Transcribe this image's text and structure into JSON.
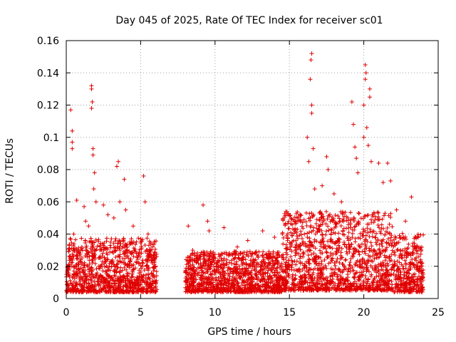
{
  "chart_data": {
    "type": "scatter",
    "title": "Day 045 of 2025, Rate Of TEC Index for receiver sc01",
    "xlabel": "GPS time / hours",
    "ylabel": "ROTI / TECUs",
    "xlim": [
      0,
      25
    ],
    "ylim": [
      0,
      0.16
    ],
    "xticks": [
      0,
      5,
      10,
      15,
      20,
      25
    ],
    "xtick_labels": [
      "0",
      "5",
      "10",
      "15",
      "20",
      "25"
    ],
    "yticks": [
      0,
      0.02,
      0.04,
      0.06,
      0.08,
      0.1,
      0.12,
      0.14,
      0.16
    ],
    "ytick_labels": [
      "0",
      "0.02",
      "0.04",
      "0.06",
      "0.08",
      "0.1",
      "0.12",
      "0.14",
      "0.16"
    ],
    "grid": true,
    "marker": "+",
    "marker_color": "#e00000",
    "data_gaps_hours": [
      [
        6.1,
        8.0
      ]
    ],
    "series": [
      {
        "name": "ROTI",
        "points": [
          [
            0.3,
            0.117
          ],
          [
            0.4,
            0.104
          ],
          [
            0.4,
            0.097
          ],
          [
            0.4,
            0.093
          ],
          [
            0.2,
            0.031
          ],
          [
            0.5,
            0.04
          ],
          [
            0.7,
            0.061
          ],
          [
            1.2,
            0.057
          ],
          [
            1.3,
            0.048
          ],
          [
            1.5,
            0.045
          ],
          [
            1.7,
            0.132
          ],
          [
            1.7,
            0.13
          ],
          [
            1.75,
            0.122
          ],
          [
            1.7,
            0.118
          ],
          [
            1.8,
            0.093
          ],
          [
            1.8,
            0.089
          ],
          [
            1.9,
            0.078
          ],
          [
            1.85,
            0.068
          ],
          [
            2.0,
            0.06
          ],
          [
            2.5,
            0.058
          ],
          [
            2.8,
            0.052
          ],
          [
            3.2,
            0.05
          ],
          [
            3.5,
            0.085
          ],
          [
            3.4,
            0.082
          ],
          [
            3.6,
            0.06
          ],
          [
            3.9,
            0.074
          ],
          [
            4.0,
            0.055
          ],
          [
            4.5,
            0.045
          ],
          [
            5.2,
            0.076
          ],
          [
            5.3,
            0.06
          ],
          [
            5.5,
            0.04
          ],
          [
            5.8,
            0.032
          ],
          [
            8.2,
            0.045
          ],
          [
            8.5,
            0.03
          ],
          [
            9.2,
            0.058
          ],
          [
            9.5,
            0.048
          ],
          [
            9.6,
            0.042
          ],
          [
            10.6,
            0.044
          ],
          [
            11.5,
            0.032
          ],
          [
            12.2,
            0.036
          ],
          [
            13.2,
            0.042
          ],
          [
            14.0,
            0.038
          ],
          [
            14.9,
            0.052
          ],
          [
            15.4,
            0.048
          ],
          [
            16.2,
            0.1
          ],
          [
            16.3,
            0.085
          ],
          [
            16.5,
            0.152
          ],
          [
            16.45,
            0.148
          ],
          [
            16.4,
            0.136
          ],
          [
            16.5,
            0.12
          ],
          [
            16.5,
            0.115
          ],
          [
            16.6,
            0.093
          ],
          [
            16.7,
            0.068
          ],
          [
            17.2,
            0.07
          ],
          [
            17.5,
            0.088
          ],
          [
            17.6,
            0.08
          ],
          [
            18.0,
            0.065
          ],
          [
            18.5,
            0.06
          ],
          [
            19.2,
            0.122
          ],
          [
            19.3,
            0.108
          ],
          [
            19.4,
            0.094
          ],
          [
            19.5,
            0.087
          ],
          [
            19.6,
            0.078
          ],
          [
            20.1,
            0.145
          ],
          [
            20.15,
            0.14
          ],
          [
            20.1,
            0.136
          ],
          [
            20.0,
            0.12
          ],
          [
            20.4,
            0.13
          ],
          [
            20.4,
            0.125
          ],
          [
            20.2,
            0.106
          ],
          [
            20.0,
            0.1
          ],
          [
            20.3,
            0.095
          ],
          [
            20.5,
            0.085
          ],
          [
            21.0,
            0.084
          ],
          [
            21.3,
            0.072
          ],
          [
            21.6,
            0.084
          ],
          [
            21.8,
            0.073
          ],
          [
            22.2,
            0.055
          ],
          [
            22.8,
            0.048
          ],
          [
            23.2,
            0.063
          ],
          [
            23.5,
            0.038
          ]
        ],
        "dense_band": [
          {
            "x_from": 0.0,
            "x_to": 6.1,
            "y_low": 0.004,
            "y_typical_top": 0.028
          },
          {
            "x_from": 8.0,
            "x_to": 14.5,
            "y_low": 0.004,
            "y_typical_top": 0.022
          },
          {
            "x_from": 14.5,
            "x_to": 22.0,
            "y_low": 0.005,
            "y_typical_top": 0.04
          },
          {
            "x_from": 22.0,
            "x_to": 24.0,
            "y_low": 0.004,
            "y_typical_top": 0.03
          }
        ]
      }
    ]
  }
}
